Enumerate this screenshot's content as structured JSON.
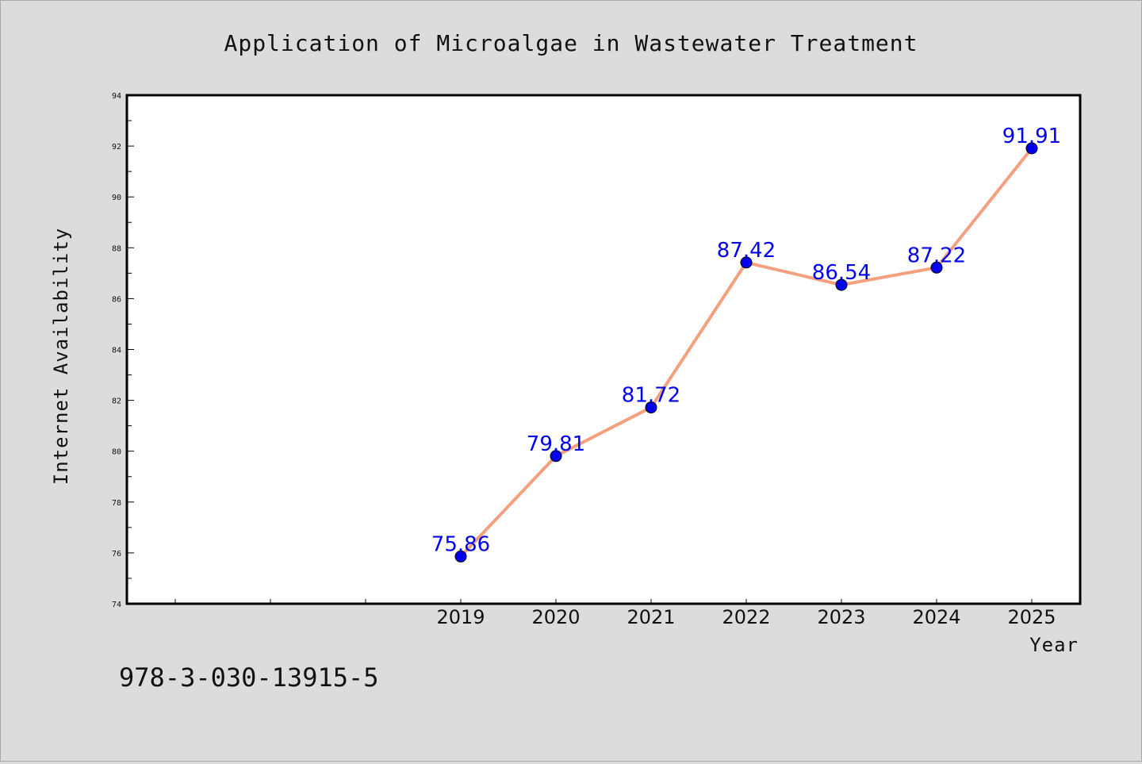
{
  "chart_data": {
    "type": "line",
    "title": "Application of Microalgae in Wastewater Treatment",
    "xlabel": "Year",
    "ylabel": "Internet Availability",
    "x": [
      "2019",
      "2020",
      "2021",
      "2022",
      "2023",
      "2024",
      "2025"
    ],
    "series": [
      {
        "values": [
          75.86,
          79.81,
          81.72,
          87.42,
          86.54,
          87.22,
          91.91
        ]
      }
    ],
    "ylim": [
      74,
      94
    ],
    "yticks": [
      74,
      76,
      78,
      80,
      82,
      84,
      86,
      88,
      90,
      92,
      94
    ],
    "x_extra_empty_slots_before": 3,
    "grid": false,
    "legend": "none",
    "colors": {
      "line": "#f4a07e",
      "marker": "#0000ee",
      "data_label": "#0000ee",
      "plot_bg": "#ffffff",
      "figure_bg": "#dcdcdc"
    }
  },
  "footer": {
    "isbn": "978-3-030-13915-5"
  }
}
